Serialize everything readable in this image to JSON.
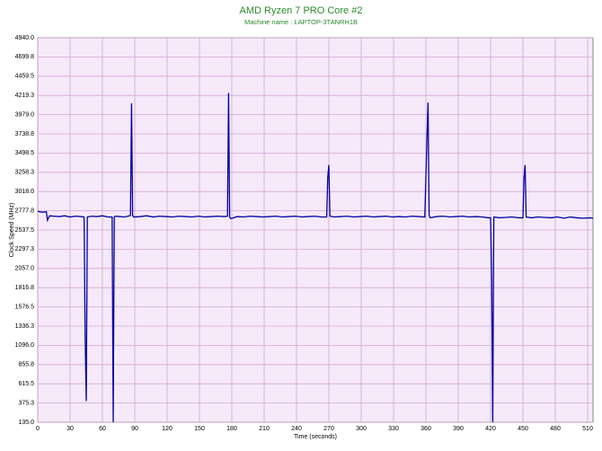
{
  "chart_data": {
    "type": "line",
    "title": "AMD Ryzen 7 PRO Core #2",
    "subtitle": "Machine name : LAPTOP-3TANRH1B",
    "x_label": "Time (seconds)",
    "y_label": "Clock Speed (MHz)",
    "grid": true,
    "xlim": [
      0,
      515
    ],
    "ylim": [
      135,
      4940
    ],
    "xticks": [
      0,
      30,
      60,
      90,
      120,
      150,
      180,
      210,
      240,
      270,
      300,
      330,
      360,
      390,
      420,
      450,
      480,
      510
    ],
    "yticks": [
      {
        "value": 135,
        "label": "135.0"
      },
      375.3,
      615.5,
      855.8,
      {
        "value": 1096,
        "label": "1096.0"
      },
      1336.3,
      1576.5,
      1816.8,
      {
        "value": 2057,
        "label": "2057.0"
      },
      2297.3,
      2537.5,
      2777.8,
      {
        "value": 3018,
        "label": "3018.0"
      },
      3258.3,
      3498.5,
      3738.8,
      {
        "value": 3979,
        "label": "3979.0"
      },
      4219.3,
      4459.5,
      4699.8,
      {
        "value": 4940,
        "label": "4940.0"
      }
    ],
    "x": [
      0,
      4,
      8,
      9,
      11,
      15,
      20,
      25,
      30,
      35,
      40,
      43,
      44,
      45,
      46,
      50,
      55,
      60,
      65,
      69,
      70,
      71,
      72,
      76,
      80,
      84,
      86,
      87,
      88,
      89,
      95,
      101,
      107,
      113,
      119,
      125,
      131,
      137,
      143,
      149,
      155,
      161,
      167,
      173,
      176,
      177,
      178,
      179,
      185,
      191,
      197,
      203,
      209,
      215,
      221,
      227,
      233,
      239,
      245,
      251,
      257,
      263,
      268,
      269,
      270,
      271,
      275,
      281,
      287,
      293,
      299,
      305,
      311,
      317,
      323,
      329,
      335,
      341,
      347,
      353,
      359,
      361,
      362,
      363,
      364,
      370,
      376,
      382,
      388,
      394,
      400,
      406,
      412,
      418,
      420,
      421,
      422,
      423,
      428,
      434,
      440,
      446,
      450,
      451,
      452,
      453,
      458,
      464,
      470,
      476,
      482,
      488,
      494,
      500,
      506,
      512,
      515
    ],
    "series": [
      {
        "name": "Clock Speed",
        "color": "#0000a0",
        "values": [
          2770,
          2760,
          2765,
          2660,
          2715,
          2710,
          2705,
          2715,
          2700,
          2710,
          2705,
          2700,
          1200,
          400,
          2700,
          2710,
          2705,
          2715,
          2700,
          2700,
          135,
          2700,
          2710,
          2705,
          2700,
          2710,
          2720,
          4120,
          2720,
          2700,
          2705,
          2715,
          2700,
          2710,
          2705,
          2700,
          2710,
          2705,
          2700,
          2710,
          2700,
          2705,
          2710,
          2705,
          2710,
          4250,
          2700,
          2680,
          2705,
          2700,
          2710,
          2705,
          2700,
          2705,
          2710,
          2700,
          2705,
          2710,
          2700,
          2705,
          2710,
          2700,
          2700,
          3200,
          3350,
          2710,
          2700,
          2705,
          2710,
          2700,
          2705,
          2710,
          2700,
          2705,
          2710,
          2700,
          2705,
          2700,
          2710,
          2705,
          2700,
          3700,
          4130,
          2720,
          2690,
          2705,
          2710,
          2700,
          2705,
          2710,
          2700,
          2705,
          2700,
          2690,
          2690,
          1950,
          135,
          2700,
          2690,
          2695,
          2700,
          2690,
          2690,
          3200,
          3350,
          2700,
          2690,
          2700,
          2695,
          2690,
          2700,
          2685,
          2700,
          2690,
          2685,
          2690,
          2685
        ]
      }
    ]
  }
}
